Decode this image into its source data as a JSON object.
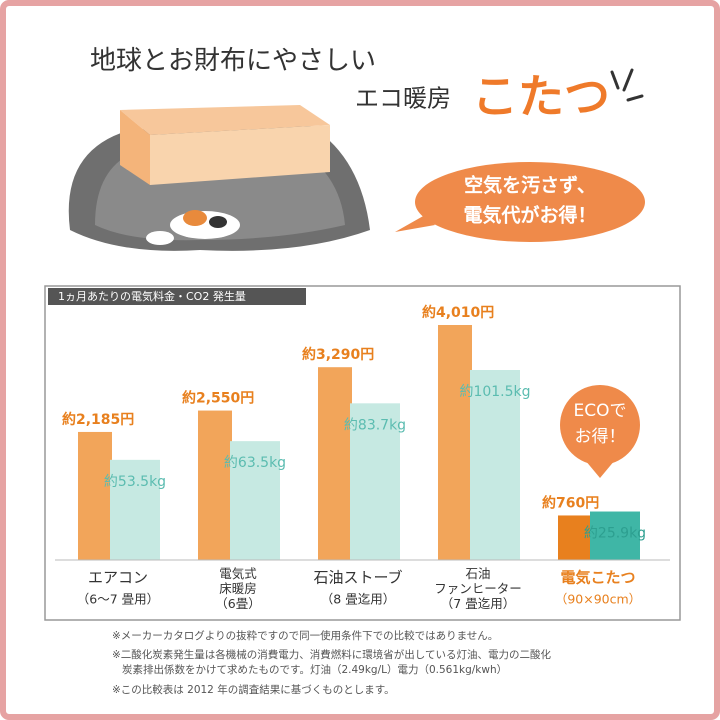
{
  "header": {
    "line1": "地球とお財布にやさしい",
    "line2": "エコ暖房",
    "highlight": "こたつ"
  },
  "bubble": {
    "lines": [
      "空気を汚さず、",
      "電気代がお得！"
    ]
  },
  "eco_bubble": {
    "lines": [
      "ECOで",
      "お得！"
    ]
  },
  "chart_data": {
    "type": "bar",
    "title": "1ヵ月あたりの電気料金・CO2 発生量",
    "categories": [
      [
        "エアコン",
        "（6～7 畳用）"
      ],
      [
        "電気式",
        "床暖房",
        "（6畳）"
      ],
      [
        "石油ストーブ",
        "（8 畳迄用）"
      ],
      [
        "石油",
        "ファンヒーター",
        "（7 畳迄用）"
      ],
      [
        "電気こたつ",
        "（90×90cm）"
      ]
    ],
    "category_colors": [
      "#333333",
      "#333333",
      "#333333",
      "#333333",
      "#e8801e"
    ],
    "series": [
      {
        "values": [
          2185,
          2550,
          3290,
          4010,
          760
        ],
        "value_labels": [
          "約2,185円",
          "約2,550円",
          "約3,290円",
          "約4,010円",
          "約760円"
        ],
        "colors": [
          "#f2a55a",
          "#f2a55a",
          "#f2a55a",
          "#f2a55a",
          "#e8801e"
        ],
        "label_color": "#e8801e"
      },
      {
        "values": [
          53.5,
          63.5,
          83.7,
          101.5,
          25.9
        ],
        "value_labels": [
          "約53.5kg",
          "約63.5kg",
          "約83.7kg",
          "約101.5kg",
          "約25.9kg"
        ],
        "colors": [
          "#c6e9e2",
          "#c6e9e2",
          "#c6e9e2",
          "#c6e9e2",
          "#3fb6a6"
        ],
        "label_color": "#5bbcb0"
      }
    ]
  },
  "footnotes": [
    "※メーカーカタログよりの抜粋ですので同一使用条件下での比較ではありません。",
    "※二酸化炭素発生量は各機械の消費電力、消費燃料に環境省が出している灯油、電力の二酸化",
    "炭素排出係数をかけて求めたものです。灯油（2.49kg/L）電力（0.561kg/kwh）",
    "※この比較表は 2012 年の調査結果に基づくものとします。"
  ]
}
